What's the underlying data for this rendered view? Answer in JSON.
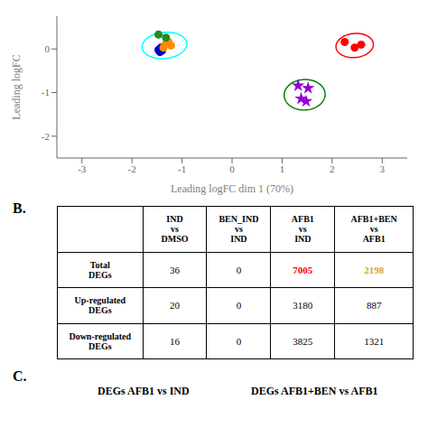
{
  "chart_data": {
    "type": "scatter",
    "xlabel": "Leading logFC dim 1 (70%)",
    "ylabel": "Leading logFC",
    "xlim": [
      -3.5,
      3.5
    ],
    "ylim": [
      -2.5,
      0.75
    ],
    "xticks": [
      -3,
      -2,
      -1,
      0,
      1,
      2,
      3
    ],
    "yticks": [
      -2,
      -1,
      0
    ],
    "ellipses": [
      {
        "color": "cyan",
        "center": [
          -1.35,
          0.08
        ],
        "width": 0.9,
        "height": 0.6,
        "angle": 8
      },
      {
        "color": "red",
        "center": [
          2.45,
          0.08
        ],
        "width": 0.75,
        "height": 0.55,
        "angle": 8
      },
      {
        "color": "green",
        "center": [
          1.45,
          -1.05
        ],
        "width": 0.82,
        "height": 0.7,
        "angle": 5
      }
    ],
    "series": [
      {
        "color": "#0000CD",
        "marker": "circle",
        "x": [
          -1.42,
          -1.47,
          -1.44,
          -1.4
        ],
        "y": [
          0.03,
          -0.02,
          -0.07,
          -0.04
        ]
      },
      {
        "color": "#FF8C00",
        "marker": "circle",
        "x": [
          -1.32,
          -1.22,
          -1.37,
          -1.27
        ],
        "y": [
          0.13,
          0.08,
          0.03,
          0.16
        ]
      },
      {
        "color": "#228B22",
        "marker": "circle",
        "x": [
          -1.47,
          -1.32
        ],
        "y": [
          0.33,
          0.26
        ]
      },
      {
        "color": "red",
        "marker": "circle",
        "x": [
          2.25,
          2.45,
          2.58
        ],
        "y": [
          0.16,
          0.03,
          0.1
        ]
      },
      {
        "color": "#9400D3",
        "marker": "star",
        "x": [
          1.32,
          1.52,
          1.38,
          1.48
        ],
        "y": [
          -0.84,
          -0.9,
          -1.14,
          -1.2
        ]
      }
    ],
    "table": {
      "col_labels": [
        "IND\nvs\nDMSO",
        "BEN_IND\nvs\nIND",
        "AFB1\nvs\nIND",
        "AFB1+BEN\nvs\nAFB1"
      ],
      "row_labels": [
        "Total\nDEGs",
        "Up-regulated\nDEGs",
        "Down-regulated\nDEGs"
      ],
      "cells": [
        [
          "36",
          "0",
          "7005",
          "2198"
        ],
        [
          "20",
          "0",
          "3180",
          "887"
        ],
        [
          "16",
          "0",
          "3825",
          "1321"
        ]
      ],
      "cell_colors": [
        [
          null,
          null,
          "red",
          "#DAA520"
        ],
        [
          null,
          null,
          null,
          null
        ],
        [
          null,
          null,
          null,
          null
        ]
      ]
    },
    "section_labels": [
      "B.",
      "C."
    ],
    "section_texts": [
      "DEGs AFB1 vs IND",
      "DEGs AFB1+BEN vs AFB1"
    ]
  }
}
